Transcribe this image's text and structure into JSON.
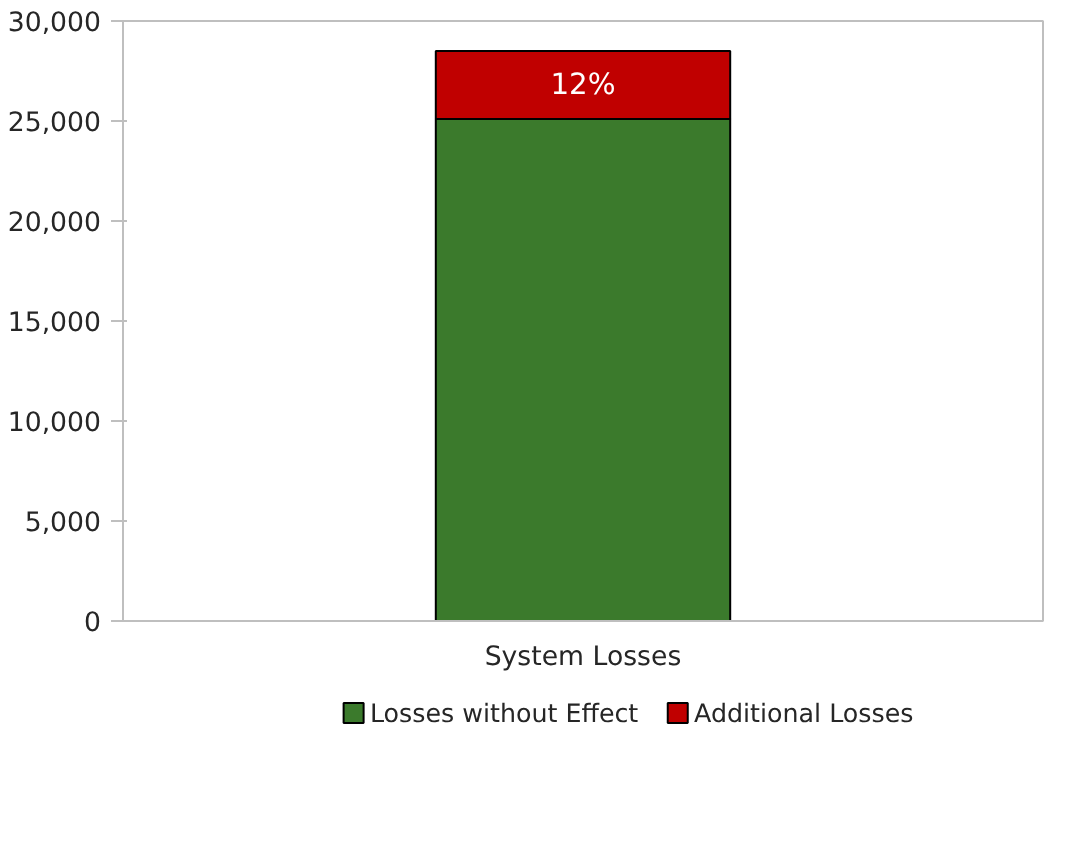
{
  "chart_data": {
    "type": "bar",
    "stacked": true,
    "categories": [
      "System Losses"
    ],
    "series": [
      {
        "name": "Losses without Effect",
        "color": "#3b7a2c",
        "values": [
          25100
        ]
      },
      {
        "name": "Additional Losses",
        "color": "#c00000",
        "values": [
          3400
        ]
      }
    ],
    "annotations": [
      "12%"
    ],
    "ylim": [
      0,
      30000
    ],
    "yticks": [
      {
        "value": 0,
        "label": "0"
      },
      {
        "value": 5000,
        "label": "5,000"
      },
      {
        "value": 10000,
        "label": "10,000"
      },
      {
        "value": 15000,
        "label": "15,000"
      },
      {
        "value": 20000,
        "label": "20,000"
      },
      {
        "value": 25000,
        "label": "25,000"
      },
      {
        "value": 30000,
        "label": "30,000"
      }
    ],
    "grid": false,
    "legend": "bottom"
  }
}
